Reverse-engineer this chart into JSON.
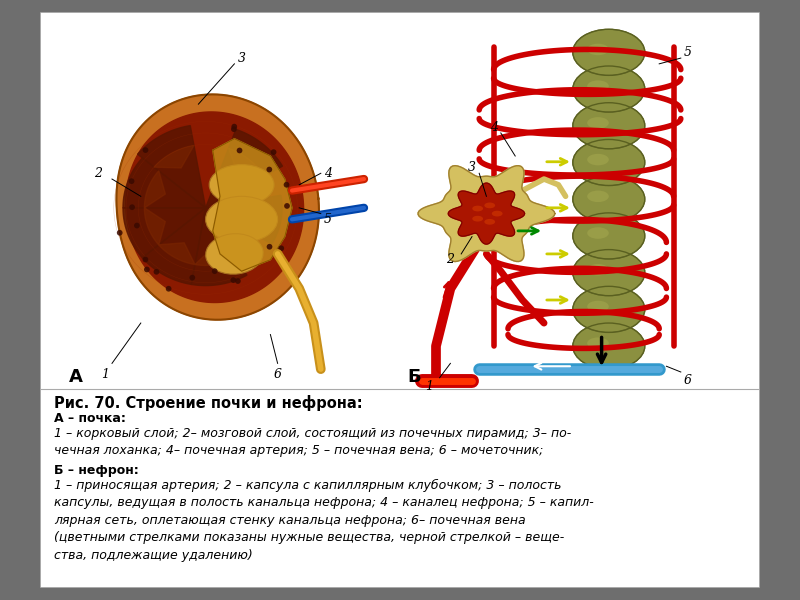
{
  "bg_color": "#6e6e6e",
  "panel_bg": "#ffffff",
  "title_bold": "Рис. 70. Строение почки и нефрона:",
  "section_a_bold": "А – почка:",
  "section_a_text": "1 – корковый слой; 2– мозговой слой, состоящий из почечных пирамид; 3– по-\nчечная лоханка; 4– почечная артерия; 5 – почечная вена; 6 – мочеточник;",
  "section_b_bold": "Б – нефрон:",
  "section_b_text": "1 – приносящая артерия; 2 – капсула с капиллярным клубочком; 3 – полость\nкапсулы, ведущая в полость канальца нефрона; 4 – каналец нефрона; 5 – капил-\nлярная сеть, оплетающая стенку канальца нефрона; 6– почечная вена\n(цветными стрелками показаны нужные вещества, черной стрелкой – веще-\nства, подлежащие удалению)",
  "label_a": "А",
  "label_b": "Б",
  "font_size_title": 10.5,
  "font_size_body": 9.0,
  "font_size_label": 13
}
